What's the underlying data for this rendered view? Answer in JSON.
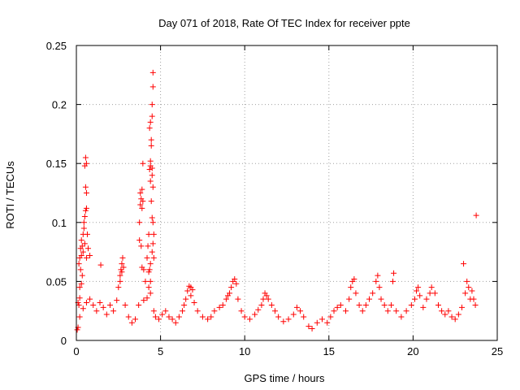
{
  "chart_data": {
    "type": "scatter",
    "title": "Day 071 of 2018, Rate Of TEC Index for receiver ppte",
    "xlabel": "GPS time / hours",
    "ylabel": "ROTI / TECUs",
    "xlim": [
      0,
      25
    ],
    "ylim": [
      0,
      0.25
    ],
    "x_ticks": [
      0,
      5,
      10,
      15,
      20,
      25
    ],
    "x_tick_labels": [
      "0",
      "5",
      "10",
      "15",
      "20",
      "25"
    ],
    "y_ticks": [
      0,
      0.05,
      0.1,
      0.15,
      0.2,
      0.25
    ],
    "y_tick_labels": [
      "0",
      "0.05",
      "0.1",
      "0.15",
      "0.2",
      "0.25"
    ],
    "grid": true,
    "marker": "+",
    "series": [
      {
        "name": "ROTI",
        "color": "#ff0000",
        "points": [
          [
            0.05,
            0.009
          ],
          [
            0.1,
            0.011
          ],
          [
            0.15,
            0.03
          ],
          [
            0.2,
            0.045
          ],
          [
            0.25,
            0.06
          ],
          [
            0.3,
            0.072
          ],
          [
            0.35,
            0.08
          ],
          [
            0.4,
            0.09
          ],
          [
            0.45,
            0.1
          ],
          [
            0.5,
            0.105
          ],
          [
            0.55,
            0.11
          ],
          [
            0.3,
            0.085
          ],
          [
            0.25,
            0.078
          ],
          [
            0.2,
            0.07
          ],
          [
            0.15,
            0.065
          ],
          [
            0.45,
            0.095
          ],
          [
            0.5,
            0.082
          ],
          [
            0.4,
            0.075
          ],
          [
            0.6,
            0.07
          ],
          [
            0.6,
            0.125
          ],
          [
            0.55,
            0.13
          ],
          [
            0.6,
            0.15
          ],
          [
            0.55,
            0.155
          ],
          [
            0.5,
            0.148
          ],
          [
            0.6,
            0.112
          ],
          [
            0.65,
            0.09
          ],
          [
            0.7,
            0.078
          ],
          [
            0.8,
            0.072
          ],
          [
            0.35,
            0.055
          ],
          [
            0.3,
            0.048
          ],
          [
            0.2,
            0.036
          ],
          [
            0.1,
            0.032
          ],
          [
            0.2,
            0.02
          ],
          [
            0.4,
            0.027
          ],
          [
            0.6,
            0.032
          ],
          [
            0.8,
            0.035
          ],
          [
            1.0,
            0.03
          ],
          [
            1.2,
            0.025
          ],
          [
            1.4,
            0.032
          ],
          [
            1.45,
            0.064
          ],
          [
            1.6,
            0.028
          ],
          [
            1.8,
            0.022
          ],
          [
            2.0,
            0.03
          ],
          [
            2.2,
            0.025
          ],
          [
            2.4,
            0.034
          ],
          [
            2.5,
            0.045
          ],
          [
            2.6,
            0.055
          ],
          [
            2.65,
            0.06
          ],
          [
            2.7,
            0.058
          ],
          [
            2.6,
            0.05
          ],
          [
            2.7,
            0.065
          ],
          [
            2.75,
            0.07
          ],
          [
            2.8,
            0.062
          ],
          [
            2.9,
            0.03
          ],
          [
            3.1,
            0.02
          ],
          [
            3.3,
            0.015
          ],
          [
            3.5,
            0.018
          ],
          [
            3.7,
            0.03
          ],
          [
            3.75,
            0.085
          ],
          [
            3.8,
            0.115
          ],
          [
            3.85,
            0.12
          ],
          [
            3.8,
            0.125
          ],
          [
            3.9,
            0.128
          ],
          [
            3.75,
            0.1
          ],
          [
            3.9,
            0.112
          ],
          [
            3.95,
            0.118
          ],
          [
            3.85,
            0.08
          ],
          [
            3.9,
            0.062
          ],
          [
            3.95,
            0.15
          ],
          [
            4.0,
            0.06
          ],
          [
            4.1,
            0.05
          ],
          [
            4.2,
            0.07
          ],
          [
            4.25,
            0.08
          ],
          [
            4.3,
            0.09
          ],
          [
            4.35,
            0.145
          ],
          [
            4.4,
            0.152
          ],
          [
            4.35,
            0.18
          ],
          [
            4.4,
            0.185
          ],
          [
            4.45,
            0.17
          ],
          [
            4.5,
            0.19
          ],
          [
            4.55,
            0.227
          ],
          [
            4.55,
            0.215
          ],
          [
            4.5,
            0.2
          ],
          [
            4.45,
            0.165
          ],
          [
            4.4,
            0.148
          ],
          [
            4.5,
            0.146
          ],
          [
            4.5,
            0.14
          ],
          [
            4.4,
            0.135
          ],
          [
            4.55,
            0.13
          ],
          [
            4.45,
            0.118
          ],
          [
            4.5,
            0.104
          ],
          [
            4.55,
            0.1
          ],
          [
            4.6,
            0.09
          ],
          [
            4.55,
            0.082
          ],
          [
            4.5,
            0.075
          ],
          [
            4.4,
            0.065
          ],
          [
            4.35,
            0.06
          ],
          [
            4.3,
            0.058
          ],
          [
            4.6,
            0.07
          ],
          [
            4.3,
            0.045
          ],
          [
            4.4,
            0.05
          ],
          [
            4.0,
            0.034
          ],
          [
            4.2,
            0.036
          ],
          [
            4.4,
            0.04
          ],
          [
            4.6,
            0.025
          ],
          [
            4.7,
            0.02
          ],
          [
            4.9,
            0.018
          ],
          [
            5.1,
            0.022
          ],
          [
            5.3,
            0.025
          ],
          [
            5.5,
            0.02
          ],
          [
            5.7,
            0.018
          ],
          [
            5.9,
            0.015
          ],
          [
            6.1,
            0.02
          ],
          [
            6.3,
            0.025
          ],
          [
            6.4,
            0.03
          ],
          [
            6.5,
            0.035
          ],
          [
            6.6,
            0.042
          ],
          [
            6.7,
            0.046
          ],
          [
            6.8,
            0.045
          ],
          [
            6.9,
            0.043
          ],
          [
            6.8,
            0.038
          ],
          [
            7.0,
            0.032
          ],
          [
            7.2,
            0.025
          ],
          [
            7.5,
            0.02
          ],
          [
            7.8,
            0.018
          ],
          [
            8.0,
            0.02
          ],
          [
            8.2,
            0.025
          ],
          [
            8.5,
            0.028
          ],
          [
            8.7,
            0.03
          ],
          [
            8.9,
            0.035
          ],
          [
            9.0,
            0.038
          ],
          [
            9.1,
            0.04
          ],
          [
            9.2,
            0.045
          ],
          [
            9.3,
            0.05
          ],
          [
            9.4,
            0.052
          ],
          [
            9.5,
            0.048
          ],
          [
            9.6,
            0.035
          ],
          [
            9.8,
            0.025
          ],
          [
            10.0,
            0.02
          ],
          [
            10.3,
            0.018
          ],
          [
            10.6,
            0.022
          ],
          [
            10.8,
            0.026
          ],
          [
            11.0,
            0.03
          ],
          [
            11.1,
            0.035
          ],
          [
            11.2,
            0.04
          ],
          [
            11.3,
            0.038
          ],
          [
            11.4,
            0.035
          ],
          [
            11.6,
            0.03
          ],
          [
            11.8,
            0.025
          ],
          [
            12.0,
            0.02
          ],
          [
            12.3,
            0.016
          ],
          [
            12.6,
            0.018
          ],
          [
            12.9,
            0.022
          ],
          [
            13.1,
            0.028
          ],
          [
            13.3,
            0.025
          ],
          [
            13.5,
            0.02
          ],
          [
            13.8,
            0.012
          ],
          [
            14.0,
            0.01
          ],
          [
            14.3,
            0.015
          ],
          [
            14.6,
            0.018
          ],
          [
            14.9,
            0.015
          ],
          [
            15.1,
            0.02
          ],
          [
            15.3,
            0.025
          ],
          [
            15.5,
            0.028
          ],
          [
            15.7,
            0.03
          ],
          [
            16.0,
            0.025
          ],
          [
            16.2,
            0.035
          ],
          [
            16.3,
            0.045
          ],
          [
            16.4,
            0.05
          ],
          [
            16.5,
            0.052
          ],
          [
            16.6,
            0.04
          ],
          [
            16.8,
            0.03
          ],
          [
            17.0,
            0.025
          ],
          [
            17.2,
            0.03
          ],
          [
            17.4,
            0.035
          ],
          [
            17.6,
            0.04
          ],
          [
            17.8,
            0.05
          ],
          [
            17.9,
            0.055
          ],
          [
            18.0,
            0.045
          ],
          [
            18.1,
            0.035
          ],
          [
            18.3,
            0.03
          ],
          [
            18.5,
            0.025
          ],
          [
            18.7,
            0.03
          ],
          [
            18.8,
            0.05
          ],
          [
            18.85,
            0.057
          ],
          [
            19.0,
            0.025
          ],
          [
            19.3,
            0.02
          ],
          [
            19.6,
            0.025
          ],
          [
            19.9,
            0.03
          ],
          [
            20.1,
            0.035
          ],
          [
            20.2,
            0.042
          ],
          [
            20.3,
            0.045
          ],
          [
            20.4,
            0.038
          ],
          [
            20.6,
            0.028
          ],
          [
            20.8,
            0.035
          ],
          [
            21.0,
            0.04
          ],
          [
            21.1,
            0.045
          ],
          [
            21.3,
            0.04
          ],
          [
            21.5,
            0.03
          ],
          [
            21.7,
            0.025
          ],
          [
            21.9,
            0.022
          ],
          [
            22.1,
            0.025
          ],
          [
            22.3,
            0.02
          ],
          [
            22.5,
            0.018
          ],
          [
            22.7,
            0.022
          ],
          [
            22.9,
            0.028
          ],
          [
            23.0,
            0.065
          ],
          [
            23.1,
            0.04
          ],
          [
            23.2,
            0.05
          ],
          [
            23.3,
            0.045
          ],
          [
            23.4,
            0.035
          ],
          [
            23.5,
            0.042
          ],
          [
            23.6,
            0.035
          ],
          [
            23.7,
            0.03
          ],
          [
            23.75,
            0.106
          ]
        ]
      }
    ]
  }
}
